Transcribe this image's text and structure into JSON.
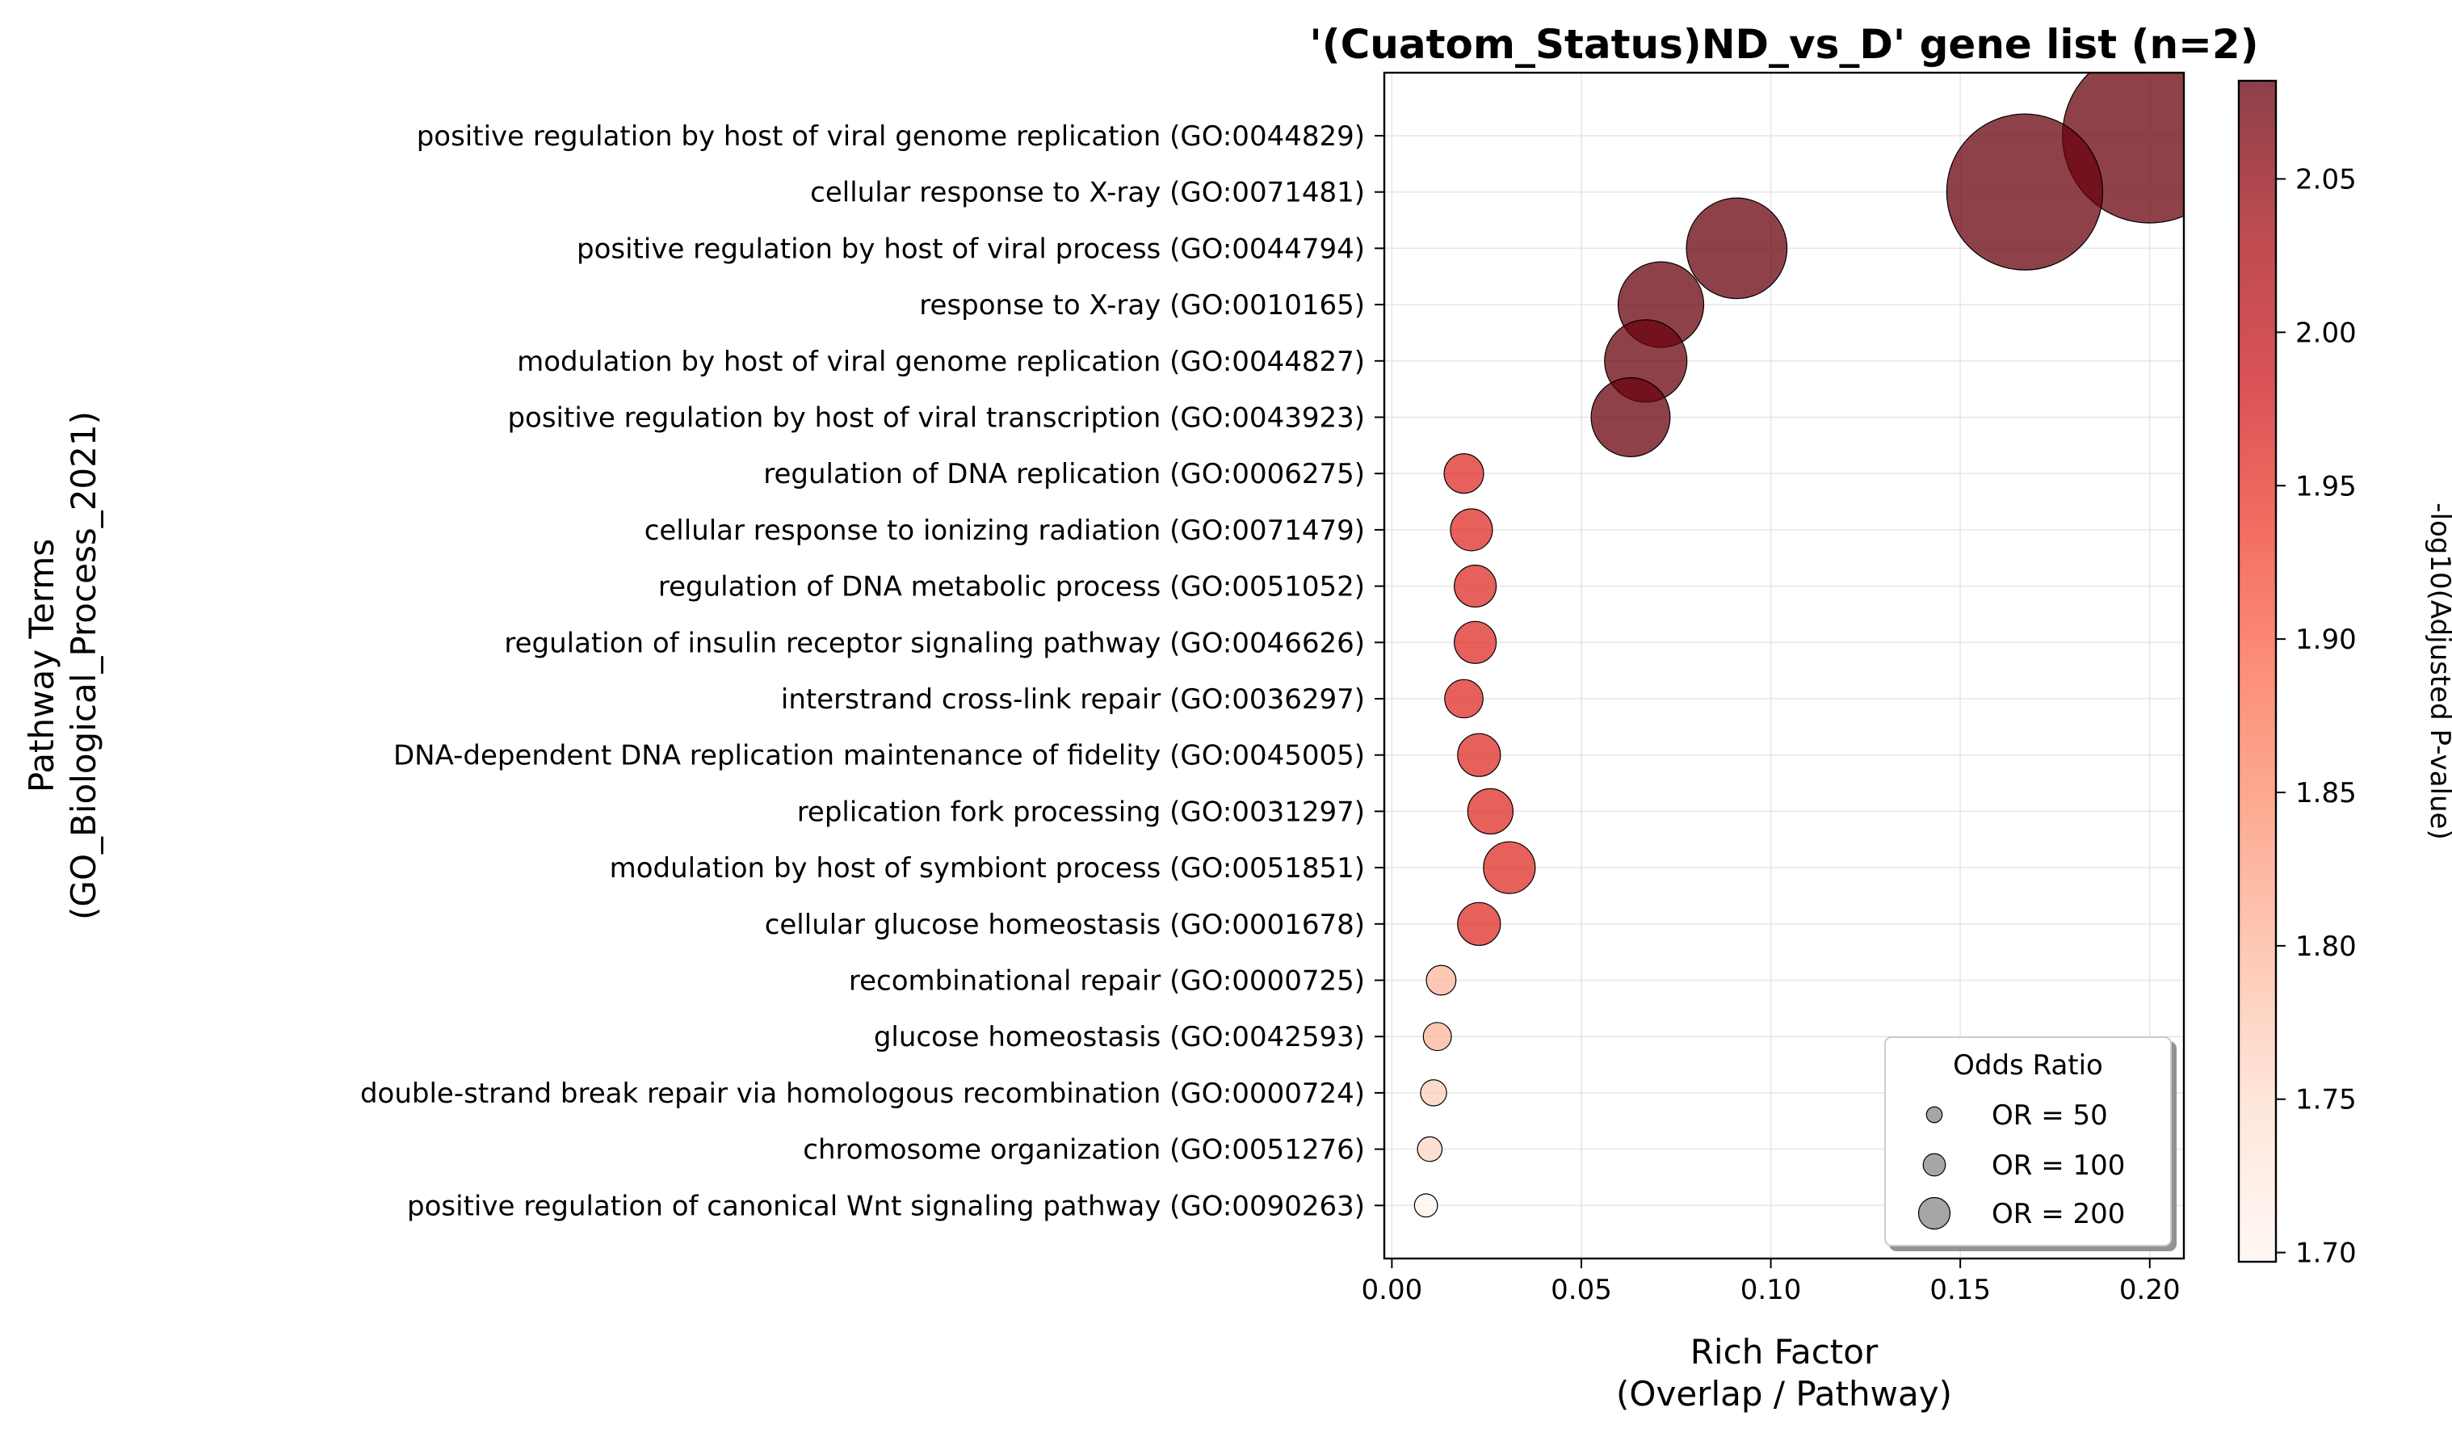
{
  "chart_data": {
    "type": "scatter",
    "title": "'(Cuatom_Status)ND_vs_D' gene list (n=2)",
    "xlabel": "Rich Factor",
    "xlabel_sub": "(Overlap / Pathway)",
    "ylabel": "Pathway Terms",
    "ylabel_sub": "(GO_Biological_Process_2021)",
    "xlim": [
      -0.002,
      0.209
    ],
    "x_ticks": [
      0.0,
      0.05,
      0.1,
      0.15,
      0.2
    ],
    "x_tick_labels": [
      "0.00",
      "0.05",
      "0.10",
      "0.15",
      "0.20"
    ],
    "grid": true,
    "size_encoding": "Odds Ratio",
    "color_encoding": "-log10(Adjusted P-value)",
    "colorbar": {
      "label": "-log10(Adjusted P-value)",
      "range": [
        1.697,
        2.082
      ],
      "ticks": [
        1.7,
        1.75,
        1.8,
        1.85,
        1.9,
        1.95,
        2.0,
        2.05
      ],
      "tick_labels": [
        "1.70",
        "1.75",
        "1.80",
        "1.85",
        "1.90",
        "1.95",
        "2.00",
        "2.05"
      ],
      "colormap": "Reds"
    },
    "legend": {
      "title": "Odds Ratio",
      "placement": "lower-right",
      "entries": [
        {
          "label": "OR = 50",
          "value": 50
        },
        {
          "label": "OR = 100",
          "value": 100
        },
        {
          "label": "OR = 200",
          "value": 200
        }
      ]
    },
    "points": [
      {
        "term": "positive regulation by host of viral genome replication (GO:0044829)",
        "x": 0.2,
        "odds_ratio": 1660,
        "neg_log10_padj": 2.08
      },
      {
        "term": "cellular response to X-ray (GO:0071481)",
        "x": 0.167,
        "odds_ratio": 1328,
        "neg_log10_padj": 2.08
      },
      {
        "term": "positive regulation by host of viral process (GO:0044794)",
        "x": 0.091,
        "odds_ratio": 552,
        "neg_log10_padj": 2.08
      },
      {
        "term": "response to X-ray (GO:0010165)",
        "x": 0.071,
        "odds_ratio": 400,
        "neg_log10_padj": 2.08
      },
      {
        "term": "modulation by host of viral genome replication (GO:0044827)",
        "x": 0.067,
        "odds_ratio": 370,
        "neg_log10_padj": 2.08
      },
      {
        "term": "positive regulation by host of viral transcription (GO:0043923)",
        "x": 0.063,
        "odds_ratio": 340,
        "neg_log10_padj": 2.08
      },
      {
        "term": "regulation of DNA replication (GO:0006275)",
        "x": 0.019,
        "odds_ratio": 85,
        "neg_log10_padj": 1.96
      },
      {
        "term": "cellular response to ionizing radiation (GO:0071479)",
        "x": 0.021,
        "odds_ratio": 96,
        "neg_log10_padj": 1.96
      },
      {
        "term": "regulation of DNA metabolic process (GO:0051052)",
        "x": 0.022,
        "odds_ratio": 96,
        "neg_log10_padj": 1.96
      },
      {
        "term": "regulation of insulin receptor signaling pathway (GO:0046626)",
        "x": 0.022,
        "odds_ratio": 96,
        "neg_log10_padj": 1.96
      },
      {
        "term": "interstrand cross-link repair (GO:0036297)",
        "x": 0.019,
        "odds_ratio": 80,
        "neg_log10_padj": 1.96
      },
      {
        "term": "DNA-dependent DNA replication maintenance of fidelity (GO:0045005)",
        "x": 0.023,
        "odds_ratio": 100,
        "neg_log10_padj": 1.96
      },
      {
        "term": "replication fork processing (GO:0031297)",
        "x": 0.026,
        "odds_ratio": 112,
        "neg_log10_padj": 1.96
      },
      {
        "term": "modulation by host of symbiont process (GO:0051851)",
        "x": 0.031,
        "odds_ratio": 146,
        "neg_log10_padj": 1.96
      },
      {
        "term": "cellular glucose homeostasis (GO:0001678)",
        "x": 0.023,
        "odds_ratio": 100,
        "neg_log10_padj": 1.96
      },
      {
        "term": "recombinational repair (GO:0000725)",
        "x": 0.013,
        "odds_ratio": 48,
        "neg_log10_padj": 1.8
      },
      {
        "term": "glucose homeostasis (GO:0042593)",
        "x": 0.012,
        "odds_ratio": 43,
        "neg_log10_padj": 1.8
      },
      {
        "term": "double-strand break repair via homologous recombination (GO:0000724)",
        "x": 0.011,
        "odds_ratio": 37,
        "neg_log10_padj": 1.77
      },
      {
        "term": "chromosome organization (GO:0051276)",
        "x": 0.01,
        "odds_ratio": 33,
        "neg_log10_padj": 1.76
      },
      {
        "term": "positive regulation of canonical Wnt signaling pathway (GO:0090263)",
        "x": 0.009,
        "odds_ratio": 29,
        "neg_log10_padj": 1.7
      }
    ]
  }
}
